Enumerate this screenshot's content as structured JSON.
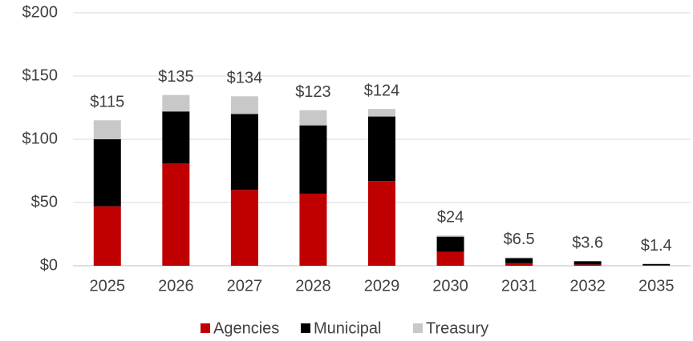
{
  "chart_data": {
    "type": "stacked_bar",
    "categories": [
      "2025",
      "2026",
      "2027",
      "2028",
      "2029",
      "2030",
      "2031",
      "2032",
      "2035"
    ],
    "series": [
      {
        "name": "Agencies",
        "color": "#c00000",
        "values": [
          47,
          81,
          60,
          57,
          67,
          11,
          2,
          1,
          0.4
        ]
      },
      {
        "name": "Municipal",
        "color": "#000000",
        "values": [
          53,
          41,
          60,
          54,
          51,
          12,
          4,
          2.6,
          1.0
        ]
      },
      {
        "name": "Treasury",
        "color": "#c8c8c8",
        "values": [
          15,
          13,
          14,
          12,
          6,
          1,
          0.5,
          0,
          0
        ]
      }
    ],
    "totals": [
      115,
      135,
      134,
      123,
      124,
      24,
      6.5,
      3.6,
      1.4
    ],
    "total_labels": [
      "$115",
      "$135",
      "$134",
      "$123",
      "$124",
      "$24",
      "$6.5",
      "$3.6",
      "$1.4"
    ],
    "ylim": [
      0,
      200
    ],
    "yticks": [
      {
        "value": 0,
        "label": "$0"
      },
      {
        "value": 50,
        "label": "$50"
      },
      {
        "value": 100,
        "label": "$100"
      },
      {
        "value": 150,
        "label": "$150"
      },
      {
        "value": 200,
        "label": "$200"
      }
    ],
    "grid": true,
    "legend": "bottom"
  }
}
